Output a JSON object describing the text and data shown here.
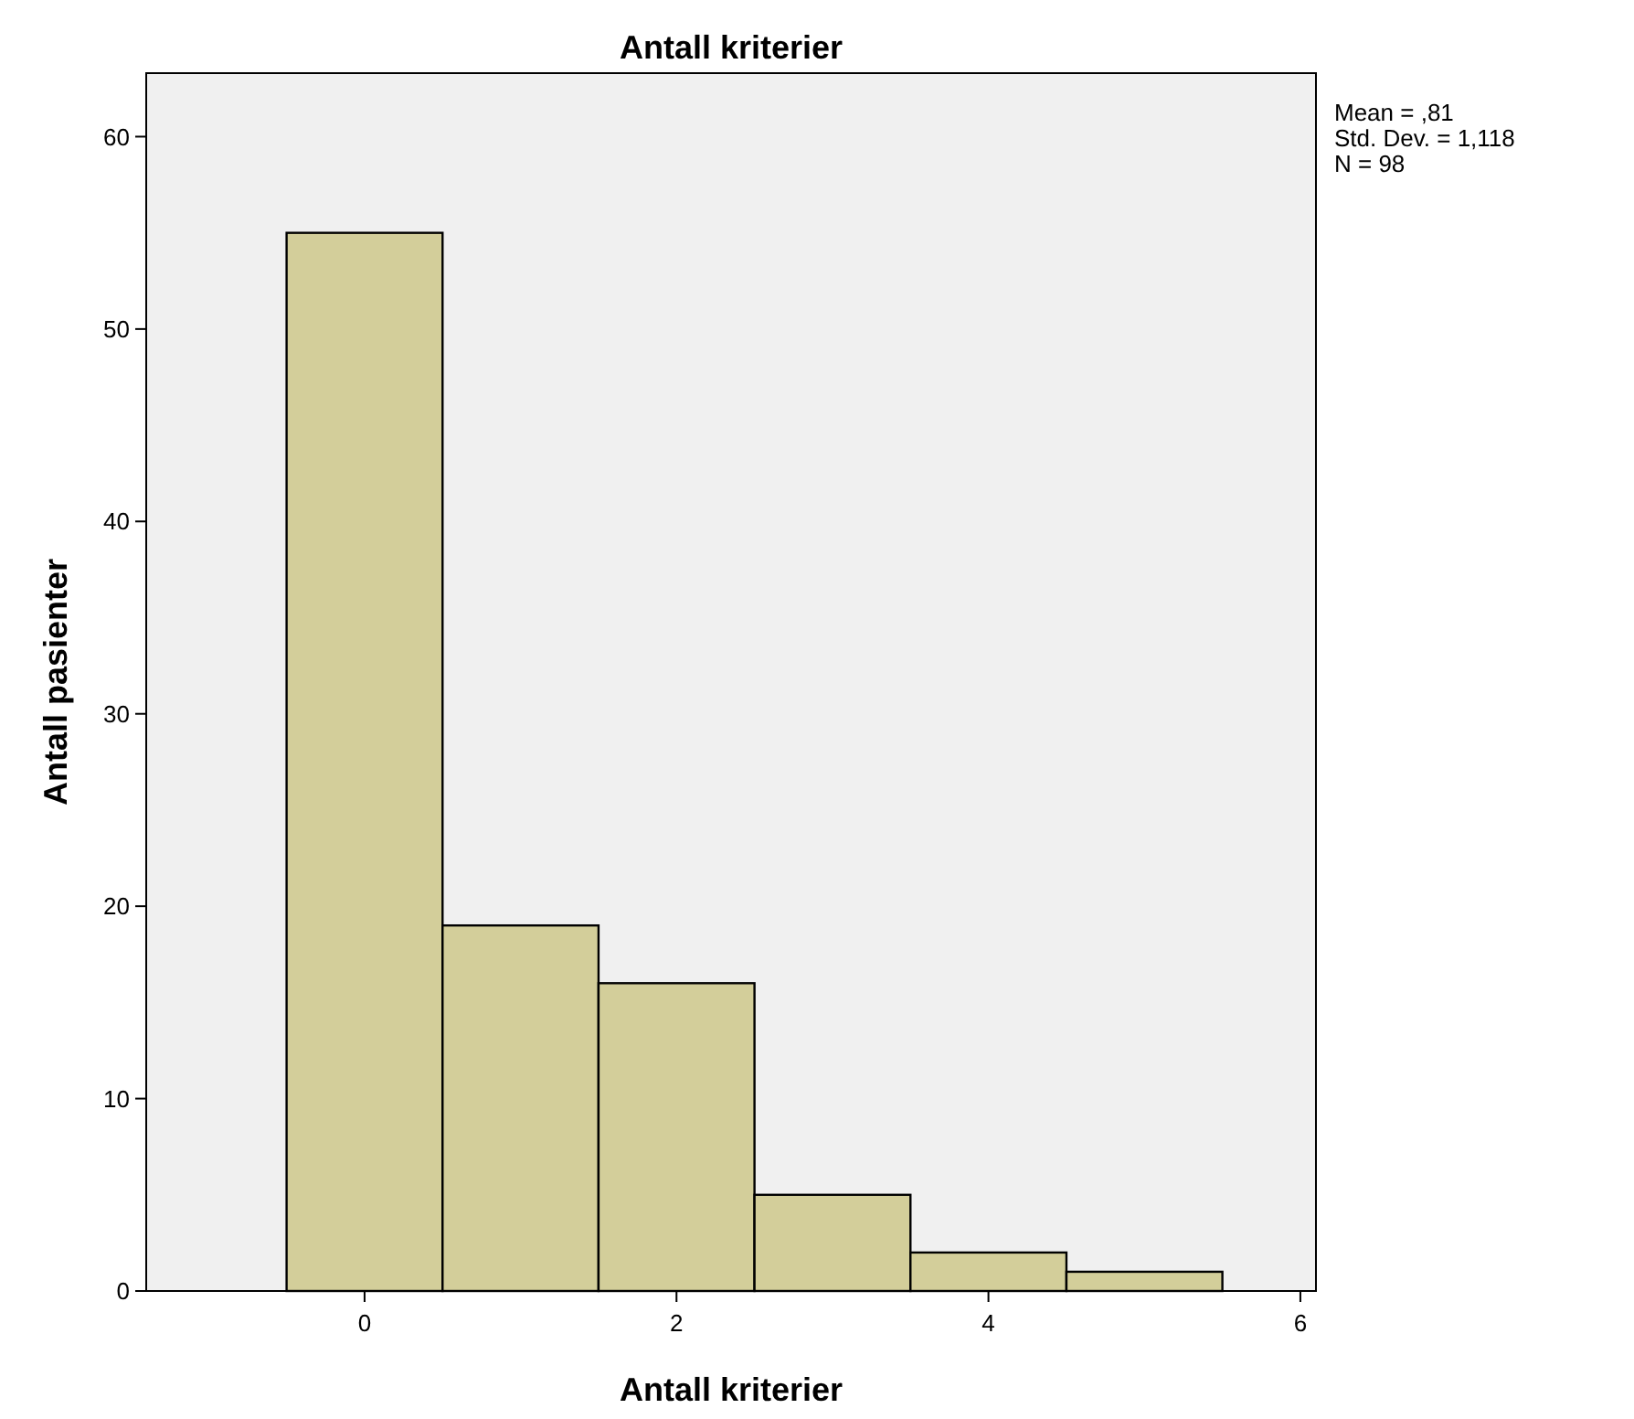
{
  "chart_data": {
    "type": "histogram",
    "title": "Antall kriterier",
    "xlabel": "Antall kriterier",
    "ylabel": "Antall pasienter",
    "bins": [
      -0.5,
      0.5,
      1.5,
      2.5,
      3.5,
      4.5,
      5.5
    ],
    "values": [
      55,
      19,
      16,
      5,
      2,
      1
    ],
    "color": "#d3ce9a",
    "xlim": [
      -1.4,
      6.1
    ],
    "xticks": [
      0,
      2,
      4,
      6
    ],
    "ylim": [
      0,
      63.3
    ],
    "yticks": [
      0,
      10,
      20,
      30,
      40,
      50,
      60
    ],
    "annotations": [
      "Mean = ,81",
      "Std. Dev. = 1,118",
      "N = 98"
    ],
    "grid": false
  }
}
